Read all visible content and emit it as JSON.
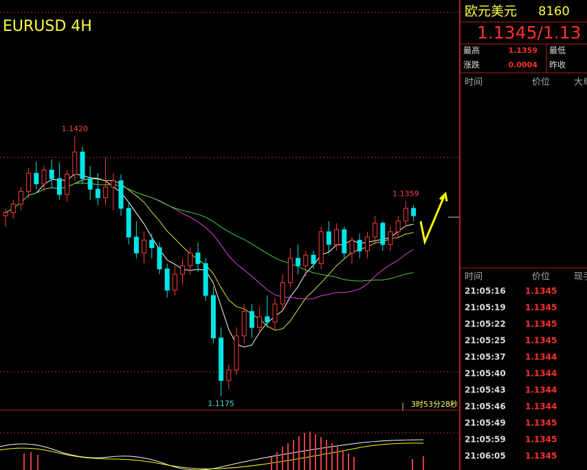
{
  "chart": {
    "title": "EURUSD 4H",
    "high_label": "1.1420",
    "low_label": "1.1175",
    "last_high_label": "1.1359",
    "countdown": "3时53分28秒",
    "ylim": [
      1.1175,
      1.142
    ],
    "candles": [
      [
        1.1345,
        1.1352,
        1.1335,
        1.1348
      ],
      [
        1.1348,
        1.136,
        1.1342,
        1.1356
      ],
      [
        1.1356,
        1.1372,
        1.135,
        1.1368
      ],
      [
        1.1368,
        1.139,
        1.1362,
        1.1385
      ],
      [
        1.1385,
        1.1396,
        1.137,
        1.1375
      ],
      [
        1.1375,
        1.1392,
        1.1368,
        1.1388
      ],
      [
        1.1388,
        1.1398,
        1.1372,
        1.138
      ],
      [
        1.138,
        1.1395,
        1.136,
        1.1365
      ],
      [
        1.1365,
        1.1388,
        1.1358,
        1.1384
      ],
      [
        1.1384,
        1.142,
        1.1378,
        1.1405
      ],
      [
        1.1405,
        1.141,
        1.1375,
        1.138
      ],
      [
        1.138,
        1.1392,
        1.136,
        1.137
      ],
      [
        1.137,
        1.1385,
        1.1355,
        1.1362
      ],
      [
        1.1362,
        1.14,
        1.1355,
        1.1372
      ],
      [
        1.1372,
        1.1385,
        1.135,
        1.1378
      ],
      [
        1.1378,
        1.1384,
        1.1345,
        1.1352
      ],
      [
        1.1352,
        1.1358,
        1.1318,
        1.1325
      ],
      [
        1.1325,
        1.134,
        1.1305,
        1.131
      ],
      [
        1.131,
        1.133,
        1.13,
        1.1322
      ],
      [
        1.1322,
        1.1328,
        1.1305,
        1.1315
      ],
      [
        1.1315,
        1.132,
        1.129,
        1.1295
      ],
      [
        1.1295,
        1.13,
        1.1268,
        1.1275
      ],
      [
        1.1275,
        1.1298,
        1.127,
        1.129
      ],
      [
        1.129,
        1.1305,
        1.128,
        1.1298
      ],
      [
        1.1298,
        1.1315,
        1.129,
        1.131
      ],
      [
        1.131,
        1.132,
        1.1292,
        1.13
      ],
      [
        1.13,
        1.1305,
        1.1265,
        1.127
      ],
      [
        1.127,
        1.1278,
        1.1225,
        1.123
      ],
      [
        1.123,
        1.124,
        1.1175,
        1.119
      ],
      [
        1.119,
        1.1205,
        1.1182,
        1.12
      ],
      [
        1.12,
        1.124,
        1.1195,
        1.1232
      ],
      [
        1.1232,
        1.1262,
        1.1225,
        1.1255
      ],
      [
        1.1255,
        1.1262,
        1.123,
        1.124
      ],
      [
        1.124,
        1.126,
        1.1235,
        1.125
      ],
      [
        1.125,
        1.127,
        1.124,
        1.1245
      ],
      [
        1.1245,
        1.1268,
        1.1238,
        1.1262
      ],
      [
        1.1262,
        1.129,
        1.1255,
        1.1282
      ],
      [
        1.1282,
        1.1315,
        1.1278,
        1.1305
      ],
      [
        1.1305,
        1.1318,
        1.129,
        1.1298
      ],
      [
        1.1298,
        1.1312,
        1.1288,
        1.1308
      ],
      [
        1.1308,
        1.1312,
        1.1295,
        1.13
      ],
      [
        1.13,
        1.1335,
        1.1295,
        1.133
      ],
      [
        1.133,
        1.134,
        1.131,
        1.1318
      ],
      [
        1.1318,
        1.1338,
        1.1312,
        1.1332
      ],
      [
        1.1332,
        1.1335,
        1.1305,
        1.131
      ],
      [
        1.131,
        1.1325,
        1.13,
        1.1322
      ],
      [
        1.1322,
        1.1328,
        1.1305,
        1.1312
      ],
      [
        1.1312,
        1.133,
        1.1305,
        1.1325
      ],
      [
        1.1325,
        1.1345,
        1.1318,
        1.1338
      ],
      [
        1.1338,
        1.134,
        1.1312,
        1.1318
      ],
      [
        1.1318,
        1.1335,
        1.1312,
        1.133
      ],
      [
        1.133,
        1.1345,
        1.1325,
        1.134
      ],
      [
        1.134,
        1.1359,
        1.1335,
        1.1352
      ],
      [
        1.1352,
        1.1355,
        1.134,
        1.1345
      ]
    ]
  },
  "quote": {
    "name": "欧元美元",
    "code": "8160",
    "price": "1.1345/1.13",
    "stats": [
      [
        "最高",
        "1.1359",
        "最低"
      ],
      [
        "涨跌",
        "0.0004",
        "昨收"
      ]
    ]
  },
  "ticks_top": {
    "headers": [
      "时间",
      "价位",
      "大单"
    ]
  },
  "ticks": {
    "headers": [
      "时间",
      "价位",
      "现手"
    ],
    "rows": [
      [
        "21:05:16",
        "1.1345"
      ],
      [
        "21:05:19",
        "1.1345"
      ],
      [
        "21:05:22",
        "1.1345"
      ],
      [
        "21:05:25",
        "1.1345"
      ],
      [
        "21:05:37",
        "1.1344"
      ],
      [
        "21:05:40",
        "1.1344"
      ],
      [
        "21:05:43",
        "1.1344"
      ],
      [
        "21:05:46",
        "1.1344"
      ],
      [
        "21:05:49",
        "1.1345"
      ],
      [
        "21:05:59",
        "1.1345"
      ],
      [
        "21:06:05",
        "1.1345"
      ]
    ]
  }
}
